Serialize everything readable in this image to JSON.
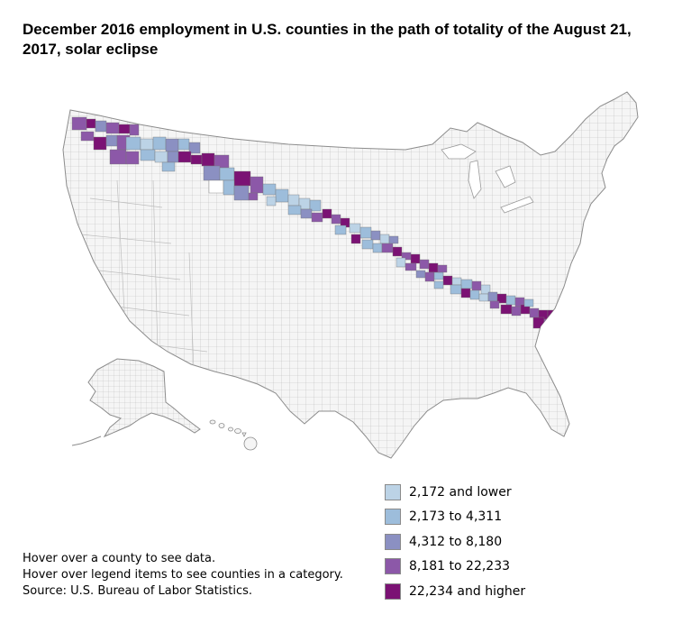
{
  "title": "December 2016 employment in U.S. counties in the path of totality of the August 21, 2017, solar eclipse",
  "colors": {
    "county_fill": "#f5f5f5",
    "county_border": "#b4b4b4",
    "outline": "#8c8c8c"
  },
  "legend": {
    "items": [
      {
        "label": "2,172 and lower",
        "color": "#bcd3e6"
      },
      {
        "label": "2,173 to 4,311",
        "color": "#9dbddb"
      },
      {
        "label": "4,312 to 8,180",
        "color": "#8b90c2"
      },
      {
        "label": "8,181 to 22,233",
        "color": "#8c58a8"
      },
      {
        "label": "22,234 and higher",
        "color": "#7b1274"
      }
    ]
  },
  "notes": {
    "line1": "Hover over a county to see data.",
    "line2": "Hover over legend items to see counties in a category.",
    "source": "Source: U.S. Bureau of Labor Statistics."
  },
  "map": {
    "regions": [
      "contiguous-us",
      "alaska",
      "hawaii"
    ],
    "path_of_totality": "Oregon to South Carolina"
  }
}
